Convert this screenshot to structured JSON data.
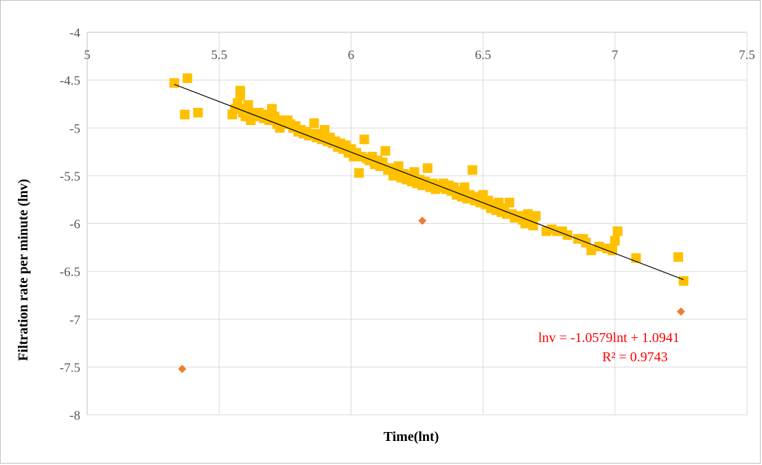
{
  "chart_data": {
    "type": "scatter",
    "xlabel": "Time(lnt)",
    "ylabel": "Filtration rate per minute (lnv)",
    "xlim": [
      5,
      7.5
    ],
    "ylim": [
      -8,
      -4
    ],
    "x_ticks": [
      "5",
      "5.5",
      "6",
      "6.5",
      "7",
      "7.5"
    ],
    "y_ticks": [
      "-4",
      "-4.5",
      "-5",
      "-5.5",
      "-6",
      "-6.5",
      "-7",
      "-7.5",
      "-8"
    ],
    "x_axis_position": "top",
    "grid": true,
    "series": [
      {
        "marker": "square",
        "color": "#ffc000",
        "points": [
          [
            5.33,
            -4.53
          ],
          [
            5.38,
            -4.48
          ],
          [
            5.37,
            -4.86
          ],
          [
            5.42,
            -4.84
          ],
          [
            5.55,
            -4.86
          ],
          [
            5.56,
            -4.8
          ],
          [
            5.57,
            -4.74
          ],
          [
            5.58,
            -4.66
          ],
          [
            5.58,
            -4.61
          ],
          [
            5.59,
            -4.84
          ],
          [
            5.6,
            -4.8
          ],
          [
            5.6,
            -4.88
          ],
          [
            5.61,
            -4.76
          ],
          [
            5.62,
            -4.92
          ],
          [
            5.62,
            -4.84
          ],
          [
            5.64,
            -4.88
          ],
          [
            5.65,
            -4.84
          ],
          [
            5.66,
            -4.86
          ],
          [
            5.67,
            -4.9
          ],
          [
            5.68,
            -4.86
          ],
          [
            5.69,
            -4.92
          ],
          [
            5.7,
            -4.8
          ],
          [
            5.71,
            -4.88
          ],
          [
            5.72,
            -4.96
          ],
          [
            5.73,
            -5.0
          ],
          [
            5.74,
            -4.92
          ],
          [
            5.75,
            -4.96
          ],
          [
            5.76,
            -4.92
          ],
          [
            5.77,
            -4.96
          ],
          [
            5.78,
            -5.0
          ],
          [
            5.79,
            -4.98
          ],
          [
            5.8,
            -5.04
          ],
          [
            5.81,
            -5.02
          ],
          [
            5.82,
            -5.06
          ],
          [
            5.83,
            -5.04
          ],
          [
            5.84,
            -5.08
          ],
          [
            5.85,
            -5.06
          ],
          [
            5.86,
            -4.95
          ],
          [
            5.87,
            -5.1
          ],
          [
            5.88,
            -5.06
          ],
          [
            5.89,
            -5.12
          ],
          [
            5.9,
            -5.02
          ],
          [
            5.91,
            -5.14
          ],
          [
            5.92,
            -5.1
          ],
          [
            5.93,
            -5.16
          ],
          [
            5.94,
            -5.14
          ],
          [
            5.95,
            -5.2
          ],
          [
            5.96,
            -5.16
          ],
          [
            5.97,
            -5.22
          ],
          [
            5.98,
            -5.18
          ],
          [
            5.99,
            -5.26
          ],
          [
            6.0,
            -5.22
          ],
          [
            6.01,
            -5.3
          ],
          [
            6.02,
            -5.26
          ],
          [
            6.03,
            -5.47
          ],
          [
            6.04,
            -5.3
          ],
          [
            6.05,
            -5.12
          ],
          [
            6.06,
            -5.32
          ],
          [
            6.07,
            -5.34
          ],
          [
            6.08,
            -5.3
          ],
          [
            6.09,
            -5.38
          ],
          [
            6.1,
            -5.34
          ],
          [
            6.11,
            -5.4
          ],
          [
            6.12,
            -5.36
          ],
          [
            6.13,
            -5.24
          ],
          [
            6.14,
            -5.44
          ],
          [
            6.15,
            -5.42
          ],
          [
            6.16,
            -5.5
          ],
          [
            6.17,
            -5.46
          ],
          [
            6.18,
            -5.4
          ],
          [
            6.19,
            -5.52
          ],
          [
            6.2,
            -5.48
          ],
          [
            6.21,
            -5.54
          ],
          [
            6.22,
            -5.5
          ],
          [
            6.23,
            -5.56
          ],
          [
            6.24,
            -5.46
          ],
          [
            6.25,
            -5.58
          ],
          [
            6.26,
            -5.54
          ],
          [
            6.27,
            -5.6
          ],
          [
            6.28,
            -5.56
          ],
          [
            6.29,
            -5.42
          ],
          [
            6.3,
            -5.62
          ],
          [
            6.31,
            -5.58
          ],
          [
            6.32,
            -5.64
          ],
          [
            6.33,
            -5.6
          ],
          [
            6.34,
            -5.62
          ],
          [
            6.35,
            -5.58
          ],
          [
            6.36,
            -5.64
          ],
          [
            6.37,
            -5.6
          ],
          [
            6.38,
            -5.66
          ],
          [
            6.39,
            -5.62
          ],
          [
            6.4,
            -5.7
          ],
          [
            6.41,
            -5.66
          ],
          [
            6.42,
            -5.72
          ],
          [
            6.43,
            -5.62
          ],
          [
            6.44,
            -5.74
          ],
          [
            6.45,
            -5.7
          ],
          [
            6.46,
            -5.44
          ],
          [
            6.47,
            -5.76
          ],
          [
            6.48,
            -5.72
          ],
          [
            6.49,
            -5.78
          ],
          [
            6.5,
            -5.7
          ],
          [
            6.51,
            -5.8
          ],
          [
            6.52,
            -5.76
          ],
          [
            6.53,
            -5.84
          ],
          [
            6.54,
            -5.8
          ],
          [
            6.55,
            -5.86
          ],
          [
            6.56,
            -5.78
          ],
          [
            6.57,
            -5.88
          ],
          [
            6.58,
            -5.84
          ],
          [
            6.59,
            -5.9
          ],
          [
            6.6,
            -5.78
          ],
          [
            6.61,
            -5.9
          ],
          [
            6.62,
            -5.94
          ],
          [
            6.64,
            -5.92
          ],
          [
            6.65,
            -5.96
          ],
          [
            6.66,
            -6.0
          ],
          [
            6.67,
            -5.9
          ],
          [
            6.68,
            -5.98
          ],
          [
            6.69,
            -6.02
          ],
          [
            6.7,
            -5.92
          ],
          [
            6.74,
            -6.08
          ],
          [
            6.76,
            -6.06
          ],
          [
            6.78,
            -6.08
          ],
          [
            6.8,
            -6.08
          ],
          [
            6.82,
            -6.12
          ],
          [
            6.86,
            -6.16
          ],
          [
            6.88,
            -6.16
          ],
          [
            6.89,
            -6.2
          ],
          [
            6.91,
            -6.28
          ],
          [
            6.94,
            -6.24
          ],
          [
            6.97,
            -6.26
          ],
          [
            6.99,
            -6.28
          ],
          [
            7.0,
            -6.18
          ],
          [
            7.01,
            -6.08
          ],
          [
            7.08,
            -6.36
          ],
          [
            7.24,
            -6.35
          ],
          [
            7.26,
            -6.6
          ]
        ]
      },
      {
        "marker": "diamond",
        "color": "#ed7d31",
        "points": [
          [
            5.36,
            -7.52
          ],
          [
            6.27,
            -5.97
          ],
          [
            7.25,
            -6.92
          ]
        ]
      }
    ],
    "trendline": {
      "color": "#000000",
      "x_start": 5.33,
      "x_end": 7.26,
      "slope": -1.0579,
      "intercept": 1.0941
    },
    "annotations": {
      "equation": "lnv = -1.0579lnt + 1.0941",
      "r_squared": "R² = 0.9743"
    }
  }
}
